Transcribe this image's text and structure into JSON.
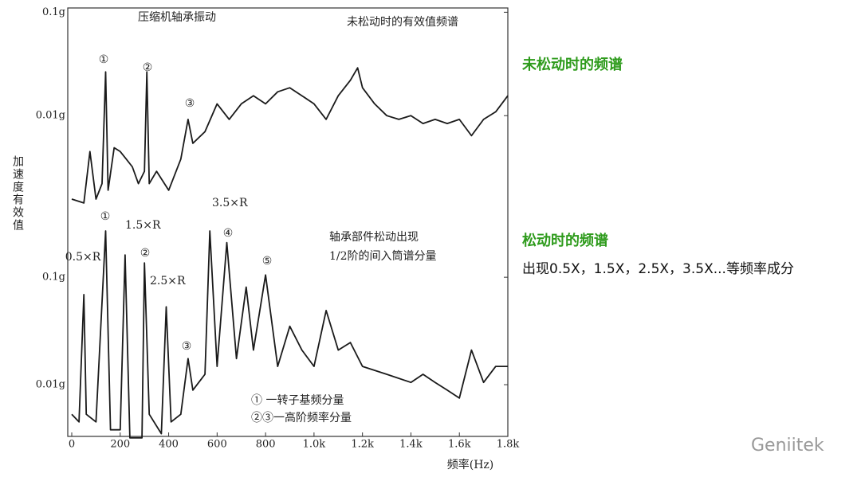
{
  "chart_data": [
    {
      "type": "line",
      "title": "压缩机轴承振动",
      "subtitle": "未松动时的有效值频谱",
      "ylabel": "加速度有效值",
      "yscale": "log",
      "color": "#1a1a1a",
      "x": [
        0,
        50,
        75,
        100,
        125,
        140,
        150,
        175,
        200,
        225,
        250,
        275,
        300,
        310,
        320,
        350,
        400,
        450,
        480,
        500,
        550,
        600,
        650,
        700,
        750,
        800,
        850,
        900,
        950,
        1000,
        1050,
        1100,
        1150,
        1180,
        1200,
        1250,
        1300,
        1350,
        1400,
        1450,
        1500,
        1550,
        1600,
        1650,
        1700,
        1750,
        1800
      ],
      "values": [
        0.00156,
        0.00143,
        0.0045,
        0.00156,
        0.0022,
        0.0265,
        0.0019,
        0.0049,
        0.0045,
        0.0038,
        0.0032,
        0.0022,
        0.0029,
        0.0265,
        0.0022,
        0.0029,
        0.0019,
        0.0038,
        0.0092,
        0.0054,
        0.007,
        0.013,
        0.0092,
        0.013,
        0.0156,
        0.013,
        0.017,
        0.0186,
        0.0156,
        0.013,
        0.0092,
        0.0156,
        0.022,
        0.029,
        0.0186,
        0.013,
        0.01,
        0.0092,
        0.01,
        0.0084,
        0.0092,
        0.0084,
        0.0092,
        0.0064,
        0.0092,
        0.0109,
        0.0156
      ],
      "xlim": [
        0,
        1800
      ],
      "ylim": [
        0.00095,
        0.11
      ],
      "yticks": [
        {
          "value": 0.1,
          "label": "0.1g"
        },
        {
          "value": 0.01,
          "label": "0.01g"
        }
      ],
      "annotations": [
        "①",
        "②",
        "③"
      ]
    },
    {
      "type": "line",
      "xlabel": "频率(Hz)",
      "yscale": "log",
      "color": "#1a1a1a",
      "x": [
        0,
        30,
        50,
        60,
        100,
        140,
        160,
        200,
        220,
        240,
        290,
        300,
        320,
        370,
        390,
        410,
        450,
        480,
        500,
        550,
        570,
        600,
        640,
        680,
        720,
        750,
        800,
        850,
        900,
        950,
        1000,
        1050,
        1100,
        1150,
        1200,
        1300,
        1400,
        1450,
        1500,
        1550,
        1600,
        1650,
        1700,
        1750,
        1800
      ],
      "values": [
        0.0053,
        0.0045,
        0.069,
        0.0053,
        0.0045,
        0.27,
        0.0038,
        0.0038,
        0.161,
        0.0032,
        0.0032,
        0.136,
        0.0053,
        0.0035,
        0.053,
        0.0045,
        0.0053,
        0.0175,
        0.0089,
        0.0125,
        0.27,
        0.0148,
        0.21,
        0.0175,
        0.081,
        0.021,
        0.105,
        0.0148,
        0.035,
        0.021,
        0.0148,
        0.049,
        0.021,
        0.0247,
        0.0148,
        0.0125,
        0.0105,
        0.0125,
        0.0105,
        0.0089,
        0.0075,
        0.021,
        0.0105,
        0.0148,
        0.0148
      ],
      "xlim": [
        0,
        1800
      ],
      "ylim": [
        0.0033,
        0.32
      ],
      "xticks": [
        0,
        200,
        400,
        600,
        800,
        {
          "value": 1000,
          "label": "1.0k"
        },
        {
          "value": 1200,
          "label": "1.2k"
        },
        {
          "value": 1400,
          "label": "1.4k"
        },
        {
          "value": 1600,
          "label": "1.6k"
        },
        {
          "value": 1800,
          "label": "1.8k"
        }
      ],
      "yticks": [
        {
          "value": 0.1,
          "label": "0.1g"
        },
        {
          "value": 0.01,
          "label": "0.01g"
        }
      ],
      "annotations": [
        "①",
        "1.5×R",
        "②",
        "0.5×R",
        "2.5×R",
        "③",
        "3.5×R",
        "④",
        "⑤",
        "轴承部件松动出现",
        "1/2阶的间入筒谱分量",
        "① 一转子基频分量",
        "②③一高阶频率分量"
      ]
    }
  ],
  "slide": {
    "heading_normal": "未松动时的频谱",
    "heading_loose": "松动时的频谱",
    "note": "出现0.5X，1.5X，2.5X，3.5X...等频率成分",
    "watermark": "Geniitek"
  }
}
